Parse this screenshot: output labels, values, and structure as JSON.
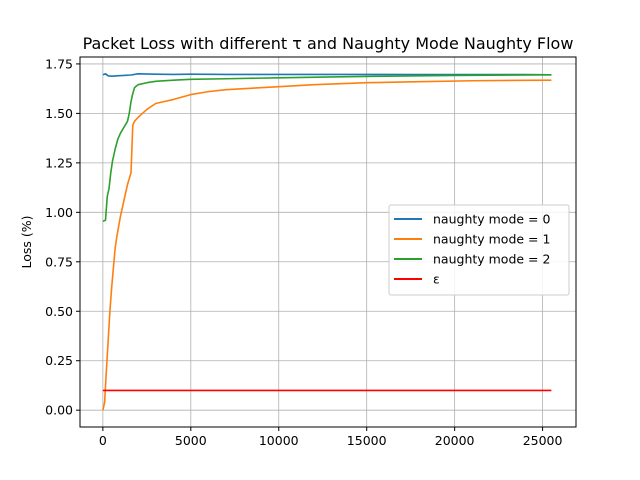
{
  "chart_data": {
    "type": "line",
    "title": "Packet Loss with different τ and Naughty Mode Naughty Flow",
    "xlabel": "",
    "ylabel": "Loss (%)",
    "xlim": [
      -1300,
      26900
    ],
    "ylim": [
      -0.085,
      1.785
    ],
    "xticks": [
      0,
      5000,
      10000,
      15000,
      20000,
      25000
    ],
    "xtick_labels": [
      "0",
      "5000",
      "10000",
      "15000",
      "20000",
      "25000"
    ],
    "yticks": [
      0.0,
      0.25,
      0.5,
      0.75,
      1.0,
      1.25,
      1.5,
      1.75
    ],
    "ytick_labels": [
      "0.00",
      "0.25",
      "0.50",
      "0.75",
      "1.00",
      "1.25",
      "1.50",
      "1.75"
    ],
    "grid": true,
    "legend_position": "center-right",
    "series": [
      {
        "name": "naughty mode = 0",
        "color": "#1f77b4",
        "x": [
          0,
          150,
          300,
          500,
          800,
          1200,
          1600,
          2000,
          3000,
          4000,
          5000,
          7000,
          9000,
          12000,
          15000,
          18000,
          21000,
          24000,
          25500
        ],
        "y": [
          1.695,
          1.7,
          1.69,
          1.688,
          1.69,
          1.692,
          1.694,
          1.7,
          1.698,
          1.697,
          1.698,
          1.697,
          1.697,
          1.697,
          1.697,
          1.696,
          1.696,
          1.696,
          1.695
        ]
      },
      {
        "name": "naughty mode = 1",
        "color": "#ff7f0e",
        "x": [
          0,
          100,
          200,
          300,
          400,
          500,
          600,
          700,
          800,
          900,
          1000,
          1200,
          1400,
          1500,
          1600,
          1700,
          1800,
          2000,
          2500,
          3000,
          3500,
          4000,
          5000,
          6000,
          7000,
          8000,
          10000,
          12000,
          15000,
          18000,
          21000,
          24000,
          25500
        ],
        "y": [
          0.0,
          0.04,
          0.2,
          0.35,
          0.5,
          0.62,
          0.72,
          0.82,
          0.88,
          0.93,
          0.98,
          1.06,
          1.14,
          1.17,
          1.2,
          1.44,
          1.46,
          1.48,
          1.52,
          1.55,
          1.56,
          1.57,
          1.595,
          1.61,
          1.62,
          1.625,
          1.635,
          1.645,
          1.655,
          1.66,
          1.665,
          1.667,
          1.668
        ]
      },
      {
        "name": "naughty mode = 2",
        "color": "#2ca02c",
        "x": [
          0,
          150,
          250,
          350,
          450,
          550,
          700,
          850,
          1000,
          1200,
          1400,
          1500,
          1600,
          1700,
          1800,
          2000,
          2500,
          3000,
          4000,
          5000,
          7000,
          10000,
          13000,
          16000,
          20000,
          25500
        ],
        "y": [
          0.955,
          0.96,
          1.08,
          1.12,
          1.2,
          1.26,
          1.32,
          1.37,
          1.4,
          1.43,
          1.46,
          1.5,
          1.56,
          1.6,
          1.63,
          1.645,
          1.655,
          1.662,
          1.668,
          1.672,
          1.675,
          1.68,
          1.684,
          1.688,
          1.692,
          1.695
        ]
      },
      {
        "name": "ε",
        "color": "#ff0000",
        "x": [
          0,
          25500
        ],
        "y": [
          0.1,
          0.1
        ]
      }
    ]
  }
}
